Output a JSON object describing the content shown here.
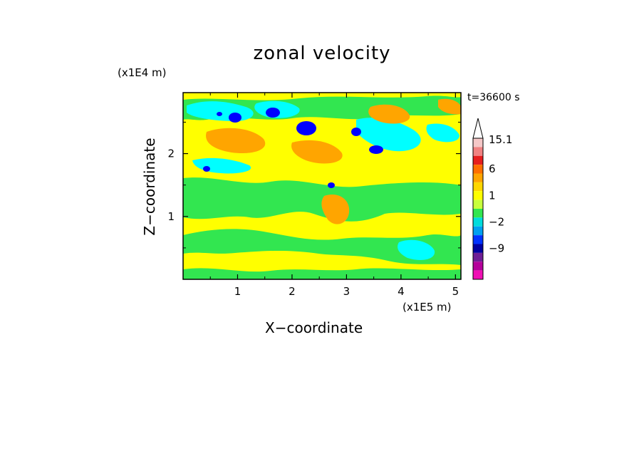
{
  "chart_data": {
    "type": "heatmap",
    "title": "zonal velocity",
    "xlabel": "X−coordinate",
    "ylabel": "Z−coordinate",
    "x_scale_label": "(x1E5 m)",
    "z_scale_label": "(x1E4 m)",
    "time_label": "t=36600 s",
    "xlim": [
      0,
      5.1
    ],
    "zlim": [
      0,
      2.97
    ],
    "x_ticks": [
      1,
      2,
      3,
      4,
      5
    ],
    "z_ticks": [
      1,
      2
    ],
    "colorbar": {
      "tick_labels": [
        "15.1",
        "6",
        "1",
        "−2",
        "−9"
      ],
      "tick_values": [
        15.1,
        6,
        1,
        -2,
        -9
      ],
      "colors_top_to_bottom": [
        "#f5c8c8",
        "#f08282",
        "#e61e1e",
        "#ff6e00",
        "#ffa500",
        "#ffd700",
        "#ffff00",
        "#c8ff3c",
        "#32e650",
        "#00dcdc",
        "#00a0f0",
        "#0032ff",
        "#0000a0",
        "#6e1e96",
        "#b4009b",
        "#f010b4"
      ]
    },
    "colors": {
      "yellow": "#ffff00",
      "orange": "#ffa500",
      "green": "#32e650",
      "cyan": "#00ffff",
      "blue": "#0000ff"
    }
  }
}
